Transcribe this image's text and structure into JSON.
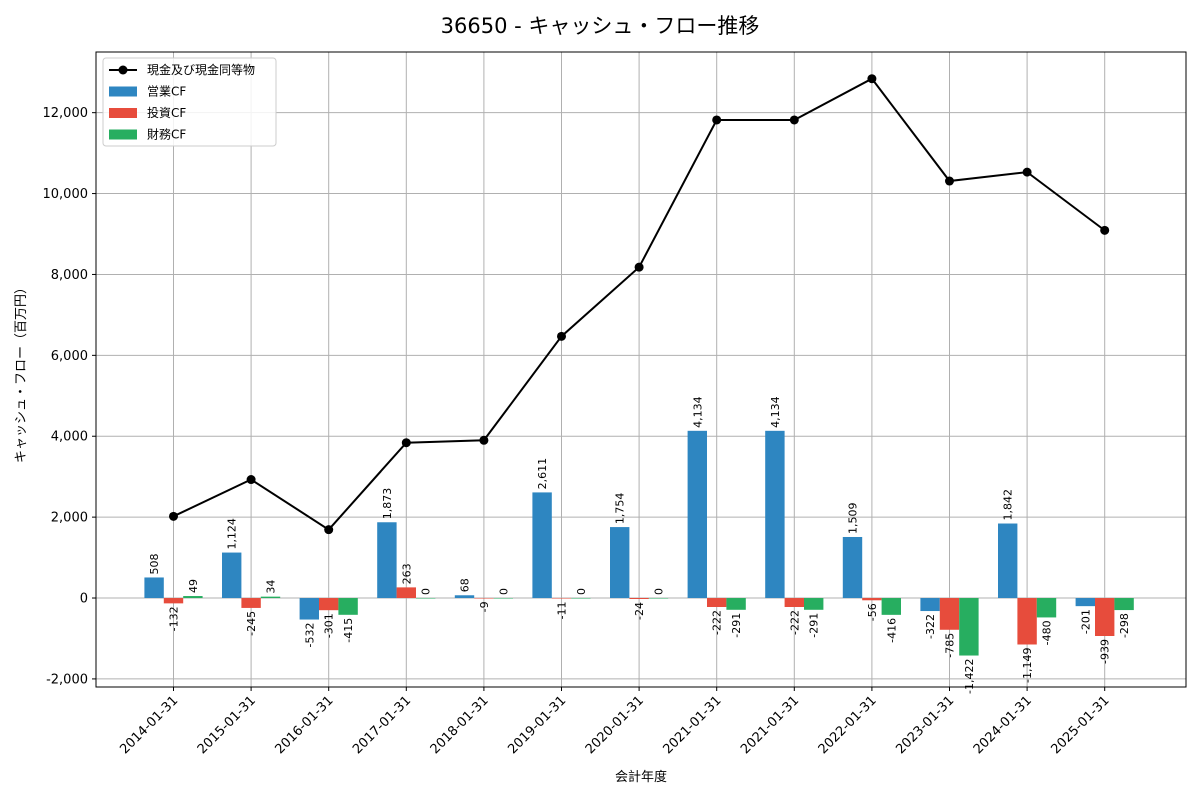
{
  "chart_data": {
    "type": "bar",
    "title": "36650 - キャッシュ・フロー推移",
    "xlabel": "会計年度",
    "ylabel": "キャッシュ・フロー（百万円）",
    "ylim": [
      -2200,
      13500
    ],
    "yticks": [
      -2000,
      0,
      2000,
      4000,
      6000,
      8000,
      10000,
      12000
    ],
    "ytick_labels": [
      "-2,000",
      "0",
      "2,000",
      "4,000",
      "6,000",
      "8,000",
      "10,000",
      "12,000"
    ],
    "grid": true,
    "legend_position": "top-left",
    "categories": [
      "2014-01-31",
      "2015-01-31",
      "2016-01-31",
      "2017-01-31",
      "2018-01-31",
      "2019-01-31",
      "2020-01-31",
      "2021-01-31",
      "2021-01-31",
      "2022-01-31",
      "2023-01-31",
      "2024-01-31",
      "2025-01-31"
    ],
    "series": [
      {
        "name": "営業CF",
        "kind": "bar",
        "color": "#2e86c1",
        "values": [
          508,
          1124,
          -532,
          1873,
          68,
          2611,
          1754,
          4134,
          4134,
          1509,
          -322,
          1842,
          -201
        ],
        "labels": [
          "508",
          "1,124",
          "-532",
          "1,873",
          "68",
          "2,611",
          "1,754",
          "4,134",
          "4,134",
          "1,509",
          "-322",
          "1,842",
          "-201"
        ]
      },
      {
        "name": "投資CF",
        "kind": "bar",
        "color": "#e74c3c",
        "values": [
          -132,
          -245,
          -301,
          263,
          -9,
          -11,
          -24,
          -222,
          -222,
          -56,
          -785,
          -1149,
          -939
        ],
        "labels": [
          "-132",
          "-245",
          "-301",
          "263",
          "-9",
          "-11",
          "-24",
          "-222",
          "-222",
          "-56",
          "-785",
          "-1,149",
          "-939"
        ]
      },
      {
        "name": "財務CF",
        "kind": "bar",
        "color": "#27ae60",
        "values": [
          49,
          34,
          -415,
          0,
          0,
          0,
          0,
          -291,
          -291,
          -416,
          -1422,
          -480,
          -298
        ],
        "labels": [
          "49",
          "34",
          "-415",
          "0",
          "0",
          "0",
          "0",
          "-291",
          "-291",
          "-416",
          "-1,422",
          "-480",
          "-298"
        ]
      },
      {
        "name": "現金及び現金同等物",
        "kind": "line",
        "color": "#000000",
        "values": [
          2020,
          2930,
          1690,
          3840,
          3900,
          6470,
          8180,
          11820,
          11820,
          12840,
          10310,
          10530,
          9090
        ]
      }
    ]
  }
}
